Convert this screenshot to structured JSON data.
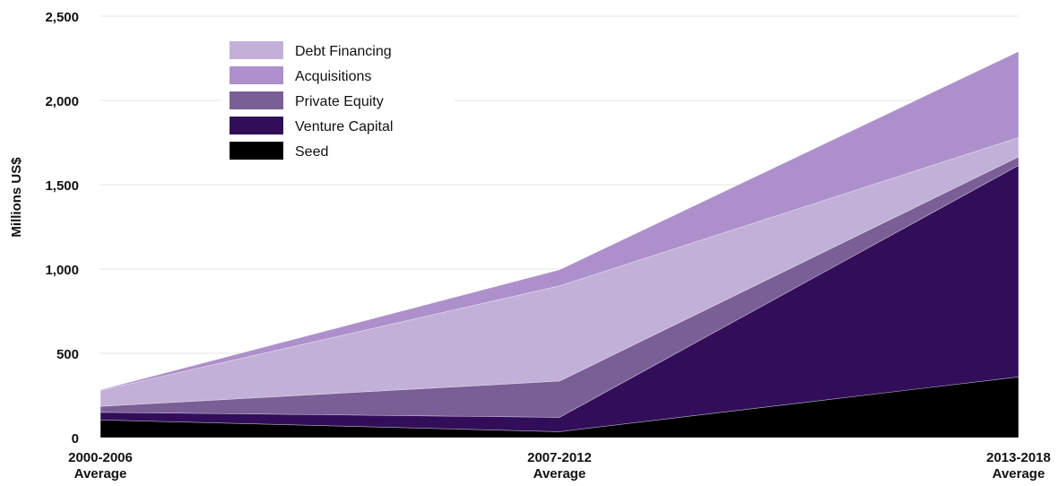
{
  "chart_data": {
    "type": "area",
    "stacked": true,
    "categories": [
      [
        "2000-2006",
        "Average"
      ],
      [
        "2007-2012",
        "Average"
      ],
      [
        "2013-2018",
        "Average"
      ]
    ],
    "ylabel": "Millions US$",
    "ylim": [
      0,
      2500
    ],
    "yticks": [
      0,
      500,
      1000,
      1500,
      2000,
      2500
    ],
    "ytick_labels": [
      "0",
      "500",
      "1,000",
      "1,500",
      "2,000",
      "2,500"
    ],
    "grid": true,
    "legend_position": "top-left",
    "series": [
      {
        "name": "Seed",
        "color": "#000000",
        "values": [
          105,
          35,
          360
        ]
      },
      {
        "name": "Venture Capital",
        "color": "#320e5a",
        "values": [
          45,
          85,
          1255
        ]
      },
      {
        "name": "Private Equity",
        "color": "#7a5e96",
        "values": [
          35,
          215,
          50
        ]
      },
      {
        "name": "Debt Financing",
        "color": "#c3b0d8",
        "values": [
          95,
          565,
          115
        ]
      },
      {
        "name": "Acquisitions",
        "color": "#ad90cb",
        "values": [
          3,
          95,
          510
        ]
      }
    ],
    "legend_order": [
      "Debt Financing",
      "Acquisitions",
      "Private Equity",
      "Venture Capital",
      "Seed"
    ]
  }
}
